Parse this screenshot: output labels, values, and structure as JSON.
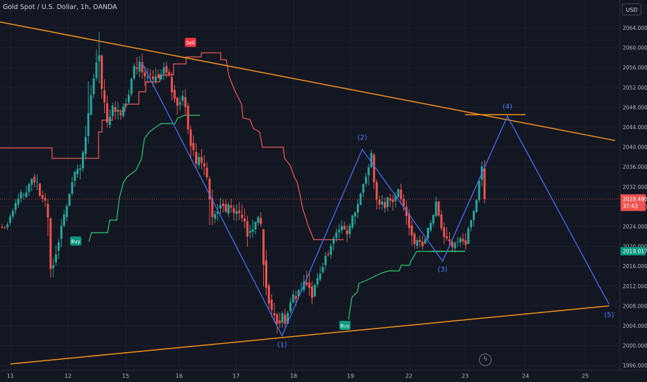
{
  "header": {
    "title": "Gold Spot / U.S. Dollar, 1h, OANDA",
    "currency_label": "USD"
  },
  "price_scale": {
    "ticks": [
      "2064.000",
      "2060.000",
      "2056.000",
      "2052.000",
      "2048.000",
      "2044.000",
      "2040.000",
      "2036.000",
      "2032.000",
      "2028.000",
      "2024.000",
      "2020.000",
      "2016.000",
      "2012.000",
      "2008.000",
      "2004.000",
      "2000.000",
      "1996.000"
    ],
    "last_price": "2029.490",
    "countdown": "37:43",
    "support_label": "2019.017"
  },
  "time_scale": {
    "labels": [
      "11",
      "12",
      "15",
      "16",
      "17",
      "18",
      "19",
      "22",
      "23",
      "24",
      "25"
    ]
  },
  "annotations": {
    "sell": "Sell",
    "buy": "Buy",
    "waves": [
      "(1)",
      "(2)",
      "(3)",
      "(4)",
      "(5)"
    ]
  },
  "colors": {
    "background": "#131722",
    "bull": "#26a69a",
    "bear": "#ef5350",
    "trendline": "#f7931a",
    "wave": "#4a6cf7",
    "wave_label": "#4a7cff",
    "stop_up": "#2ecc71",
    "stop_down": "#f05a5a"
  },
  "chart_data": {
    "type": "candlestick",
    "symbol": "Gold Spot / U.S. Dollar",
    "interval": "1h",
    "source": "OANDA",
    "y_range": [
      1996,
      2066
    ],
    "x_range": [
      "11",
      "25"
    ],
    "last_price": 2029.49,
    "trendlines": [
      {
        "name": "upper",
        "points": [
          [
            "10",
            2067.0
          ],
          [
            "25.5",
            2041.3
          ]
        ]
      },
      {
        "name": "lower",
        "points": [
          [
            "11",
            1996.3
          ],
          [
            "25.4",
            2008.0
          ]
        ]
      },
      {
        "name": "horizontal",
        "points": [
          [
            "23.0",
            2046.5
          ],
          [
            "24.0",
            2046.5
          ]
        ]
      },
      {
        "name": "support",
        "points": [
          [
            "22.4",
            2019.0
          ],
          [
            "23.0",
            2019.0
          ]
        ]
      }
    ],
    "elliott_wave": [
      {
        "label": "",
        "x": "15.3",
        "y": 2057.0
      },
      {
        "label": "(1)",
        "x": "17.8",
        "y": 2002.0
      },
      {
        "label": "(2)",
        "x": "19.6",
        "y": 2039.5
      },
      {
        "label": "(3)",
        "x": "22.6",
        "y": 2017.0
      },
      {
        "label": "(4)",
        "x": "23.7",
        "y": 2046.2
      },
      {
        "label": "(5)",
        "x": "25.4",
        "y": 2008.3
      }
    ],
    "signals": [
      {
        "type": "Sell",
        "x": "16.2",
        "y": 2061.0
      },
      {
        "type": "Buy",
        "x": "12.4",
        "y": 2021.0
      },
      {
        "type": "Buy",
        "x": "18.9",
        "y": 2004.0
      }
    ],
    "candles": [
      [
        2023.9,
        2024.6,
        2023.7,
        2023.6
      ],
      [
        2023.7,
        2024.1,
        2023.6,
        2023.6
      ],
      [
        2023.8,
        2024.9,
        2024.4,
        2023.3
      ],
      [
        2024.7,
        2026.5,
        2026.0,
        2024.1
      ],
      [
        2026.0,
        2027.6,
        2027.1,
        2025.5
      ],
      [
        2027.3,
        2029.4,
        2028.7,
        2026.5
      ],
      [
        2028.4,
        2030.6,
        2029.6,
        2027.8
      ],
      [
        2029.6,
        2031.4,
        2030.9,
        2028.8
      ],
      [
        2030.4,
        2030.8,
        2030.4,
        2029.4
      ],
      [
        2029.9,
        2032.2,
        2030.9,
        2029.8
      ],
      [
        2031.0,
        2032.8,
        2032.5,
        2030.2
      ],
      [
        2032.4,
        2033.7,
        2033.6,
        2031.1
      ],
      [
        2034.0,
        2034.6,
        2032.9,
        2031.9
      ],
      [
        2033.0,
        2034.5,
        2033.0,
        2031.3
      ],
      [
        2032.6,
        2032.8,
        2030.2,
        2029.9
      ],
      [
        2030.3,
        2031.1,
        2029.6,
        2028.8
      ],
      [
        2029.7,
        2030.7,
        2029.2,
        2028.0
      ],
      [
        2028.5,
        2029.5,
        2025.8,
        2022.1
      ],
      [
        2025.6,
        2025.9,
        2015.4,
        2013.7
      ],
      [
        2015.6,
        2017.5,
        2016.2,
        2013.8
      ],
      [
        2016.8,
        2020.2,
        2018.4,
        2016.1
      ],
      [
        2019.1,
        2021.5,
        2020.8,
        2017.5
      ],
      [
        2021.5,
        2025.5,
        2024.1,
        2019.8
      ],
      [
        2024.1,
        2027.3,
        2026.4,
        2023.8
      ],
      [
        2025.9,
        2028.4,
        2028.1,
        2025.0
      ],
      [
        2028.2,
        2030.6,
        2030.6,
        2028.0
      ],
      [
        2030.6,
        2034.0,
        2032.9,
        2030.1
      ],
      [
        2033.2,
        2035.2,
        2035.0,
        2032.0
      ],
      [
        2034.5,
        2036.4,
        2035.6,
        2033.8
      ],
      [
        2035.4,
        2036.5,
        2035.7,
        2033.5
      ],
      [
        2035.7,
        2039.3,
        2038.9,
        2035.0
      ],
      [
        2038.6,
        2044.3,
        2042.0,
        2037.5
      ],
      [
        2042.2,
        2053.2,
        2046.8,
        2040.7
      ],
      [
        2046.5,
        2052.4,
        2050.4,
        2046.3
      ],
      [
        2050.6,
        2054.7,
        2053.8,
        2049.8
      ],
      [
        2053.9,
        2059.6,
        2057.0,
        2053.3
      ],
      [
        2057.3,
        2063.2,
        2058.5,
        2052.8
      ],
      [
        2058.4,
        2058.6,
        2051.7,
        2049.8
      ],
      [
        2051.4,
        2053.6,
        2049.0,
        2046.8
      ],
      [
        2048.8,
        2050.4,
        2044.9,
        2043.9
      ],
      [
        2044.4,
        2047.6,
        2046.1,
        2043.8
      ],
      [
        2046.3,
        2048.9,
        2048.3,
        2046.0
      ],
      [
        2048.0,
        2049.2,
        2047.4,
        2045.6
      ],
      [
        2047.5,
        2049.1,
        2047.5,
        2045.5
      ],
      [
        2046.9,
        2047.6,
        2046.4,
        2045.4
      ],
      [
        2046.3,
        2048.8,
        2048.1,
        2045.9
      ],
      [
        2048.3,
        2049.8,
        2048.5,
        2047.7
      ],
      [
        2049.0,
        2051.5,
        2050.5,
        2048.5
      ],
      [
        2050.7,
        2054.0,
        2053.7,
        2050.2
      ],
      [
        2053.8,
        2056.8,
        2056.3,
        2053.4
      ],
      [
        2056.0,
        2058.1,
        2055.7,
        2054.6
      ],
      [
        2055.2,
        2058.3,
        2057.2,
        2054.0
      ],
      [
        2057.1,
        2058.8,
        2055.0,
        2053.7
      ],
      [
        2055.0,
        2056.3,
        2054.2,
        2052.3
      ],
      [
        2053.9,
        2055.9,
        2054.1,
        2052.8
      ],
      [
        2054.6,
        2055.7,
        2054.5,
        2053.2
      ],
      [
        2054.2,
        2055.5,
        2053.6,
        2052.1
      ],
      [
        2053.1,
        2055.9,
        2054.2,
        2052.7
      ],
      [
        2054.6,
        2055.6,
        2053.9,
        2053.8
      ],
      [
        2053.6,
        2055.6,
        2054.6,
        2053.4
      ],
      [
        2054.7,
        2057.1,
        2056.0,
        2053.5
      ],
      [
        2056.3,
        2057.2,
        2055.0,
        2053.9
      ],
      [
        2055.1,
        2055.7,
        2054.6,
        2054.1
      ],
      [
        2054.1,
        2055.1,
        2051.0,
        2049.3
      ],
      [
        2051.5,
        2052.5,
        2049.7,
        2048.9
      ],
      [
        2049.9,
        2050.1,
        2048.3,
        2046.5
      ],
      [
        2048.5,
        2050.1,
        2049.0,
        2047.3
      ],
      [
        2049.3,
        2051.4,
        2050.3,
        2048.3
      ],
      [
        2050.0,
        2051.6,
        2048.0,
        2046.3
      ],
      [
        2048.3,
        2048.9,
        2043.5,
        2042.6
      ],
      [
        2043.5,
        2044.3,
        2040.2,
        2037.6
      ],
      [
        2040.8,
        2042.3,
        2039.4,
        2038.1
      ],
      [
        2039.0,
        2040.8,
        2036.6,
        2035.8
      ],
      [
        2036.3,
        2038.8,
        2038.0,
        2035.6
      ],
      [
        2038.0,
        2039.6,
        2036.8,
        2035.5
      ],
      [
        2036.7,
        2038.3,
        2036.1,
        2034.3
      ],
      [
        2035.8,
        2037.0,
        2033.9,
        2033.4
      ],
      [
        2033.6,
        2034.1,
        2029.4,
        2024.3
      ],
      [
        2029.6,
        2031.4,
        2025.9,
        2024.2
      ],
      [
        2025.6,
        2027.2,
        2026.5,
        2024.7
      ],
      [
        2026.6,
        2028.5,
        2027.1,
        2025.1
      ],
      [
        2027.6,
        2029.7,
        2028.3,
        2026.5
      ],
      [
        2028.6,
        2029.4,
        2028.1,
        2026.8
      ],
      [
        2028.5,
        2029.4,
        2027.0,
        2026.6
      ],
      [
        2026.6,
        2028.9,
        2028.4,
        2025.9
      ],
      [
        2028.2,
        2029.6,
        2027.8,
        2026.8
      ],
      [
        2027.7,
        2028.4,
        2026.7,
        2025.2
      ],
      [
        2026.5,
        2028.4,
        2027.1,
        2025.1
      ],
      [
        2027.2,
        2028.9,
        2026.7,
        2025.3
      ],
      [
        2026.4,
        2028.4,
        2025.7,
        2024.9
      ],
      [
        2025.6,
        2027.6,
        2025.0,
        2023.6
      ],
      [
        2025.0,
        2026.2,
        2022.0,
        2019.9
      ],
      [
        2022.7,
        2024.3,
        2023.1,
        2021.6
      ],
      [
        2022.9,
        2025.4,
        2023.4,
        2021.8
      ],
      [
        2023.4,
        2025.0,
        2024.9,
        2022.4
      ],
      [
        2024.7,
        2026.2,
        2025.9,
        2024.2
      ],
      [
        2025.7,
        2026.9,
        2024.5,
        2023.9
      ],
      [
        2023.4,
        2023.5,
        2016.3,
        2011.9
      ],
      [
        2017.2,
        2019.2,
        2011.6,
        2010.1
      ],
      [
        2012.1,
        2012.6,
        2008.5,
        2007.4
      ],
      [
        2009.2,
        2010.3,
        2007.2,
        2005.7
      ],
      [
        2006.5,
        2008.6,
        2006.1,
        2004.6
      ],
      [
        2006.3,
        2006.6,
        2004.4,
        2002.5
      ],
      [
        2005.1,
        2006.6,
        2004.5,
        2003.6
      ],
      [
        2004.6,
        2006.9,
        2006.5,
        2003.6
      ],
      [
        2006.2,
        2007.4,
        2004.4,
        2003.8
      ],
      [
        2004.4,
        2007.0,
        2006.6,
        2004.4
      ],
      [
        2006.9,
        2009.5,
        2008.7,
        2006.5
      ],
      [
        2008.7,
        2011.1,
        2010.3,
        2008.5
      ],
      [
        2010.0,
        2011.1,
        2009.4,
        2008.1
      ],
      [
        2009.9,
        2011.4,
        2011.2,
        2009.6
      ],
      [
        2011.2,
        2012.7,
        2011.2,
        2010.7
      ],
      [
        2011.2,
        2014.2,
        2012.9,
        2010.7
      ],
      [
        2012.7,
        2015.1,
        2012.2,
        2011.9
      ],
      [
        2012.7,
        2014.7,
        2011.6,
        2010.0
      ],
      [
        2011.9,
        2013.0,
        2009.6,
        2008.3
      ],
      [
        2009.9,
        2012.5,
        2012.2,
        2009.8
      ],
      [
        2012.3,
        2014.6,
        2013.6,
        2011.7
      ],
      [
        2013.3,
        2015.9,
        2014.5,
        2012.9
      ],
      [
        2014.8,
        2016.7,
        2015.8,
        2014.4
      ],
      [
        2016.2,
        2018.8,
        2018.1,
        2015.4
      ],
      [
        2018.4,
        2019.1,
        2018.3,
        2017.9
      ],
      [
        2018.3,
        2020.6,
        2020.1,
        2017.5
      ],
      [
        2020.5,
        2022.1,
        2021.6,
        2019.2
      ],
      [
        2021.7,
        2023.6,
        2022.8,
        2020.9
      ],
      [
        2022.8,
        2024.5,
        2023.3,
        2021.5
      ],
      [
        2023.2,
        2025.3,
        2024.1,
        2022.6
      ],
      [
        2024.1,
        2025.0,
        2023.4,
        2023.3
      ],
      [
        2023.2,
        2024.3,
        2022.4,
        2020.8
      ],
      [
        2022.5,
        2024.6,
        2024.1,
        2021.6
      ],
      [
        2023.8,
        2026.3,
        2026.2,
        2023.4
      ],
      [
        2026.0,
        2027.1,
        2026.8,
        2024.4
      ],
      [
        2026.8,
        2029.5,
        2028.5,
        2025.6
      ],
      [
        2028.3,
        2030.9,
        2030.6,
        2028.3
      ],
      [
        2030.8,
        2032.7,
        2032.5,
        2029.8
      ],
      [
        2032.6,
        2034.8,
        2034.0,
        2032.0
      ],
      [
        2034.3,
        2036.6,
        2035.9,
        2032.3
      ],
      [
        2036.0,
        2039.5,
        2038.8,
        2035.7
      ],
      [
        2038.4,
        2038.8,
        2032.9,
        2031.5
      ],
      [
        2032.9,
        2033.4,
        2029.4,
        2027.4
      ],
      [
        2029.4,
        2030.2,
        2028.4,
        2027.4
      ],
      [
        2028.4,
        2030.3,
        2029.0,
        2027.3
      ],
      [
        2028.9,
        2029.8,
        2027.7,
        2026.8
      ],
      [
        2027.9,
        2030.0,
        2029.8,
        2027.0
      ],
      [
        2029.7,
        2030.6,
        2029.2,
        2027.9
      ],
      [
        2029.4,
        2030.4,
        2028.9,
        2027.2
      ],
      [
        2029.1,
        2030.9,
        2030.2,
        2027.8
      ],
      [
        2029.9,
        2031.6,
        2031.5,
        2029.8
      ],
      [
        2031.4,
        2032.6,
        2029.5,
        2028.4
      ],
      [
        2029.5,
        2030.5,
        2028.1,
        2027.1
      ],
      [
        2028.0,
        2029.2,
        2026.1,
        2024.3
      ],
      [
        2026.6,
        2027.5,
        2023.7,
        2022.2
      ],
      [
        2024.2,
        2025.2,
        2022.2,
        2020.1
      ],
      [
        2022.5,
        2022.9,
        2020.5,
        2019.5
      ],
      [
        2020.1,
        2021.8,
        2021.2,
        2019.5
      ],
      [
        2021.3,
        2022.2,
        2020.9,
        2019.8
      ],
      [
        2020.9,
        2022.1,
        2020.0,
        2019.3
      ],
      [
        2020.5,
        2021.9,
        2021.4,
        2020.5
      ],
      [
        2021.6,
        2023.8,
        2023.7,
        2021.2
      ],
      [
        2023.2,
        2025.2,
        2024.7,
        2022.8
      ],
      [
        2024.6,
        2026.4,
        2026.3,
        2023.9
      ],
      [
        2026.1,
        2030.0,
        2029.0,
        2025.8
      ],
      [
        2029.0,
        2029.1,
        2026.2,
        2025.9
      ],
      [
        2026.4,
        2027.3,
        2023.6,
        2023.1
      ],
      [
        2023.8,
        2024.8,
        2021.9,
        2020.4
      ],
      [
        2022.0,
        2023.9,
        2021.6,
        2021.1
      ],
      [
        2021.4,
        2022.8,
        2021.0,
        2019.8
      ],
      [
        2020.9,
        2021.5,
        2019.9,
        2018.8
      ],
      [
        2019.6,
        2021.0,
        2020.7,
        2018.7
      ],
      [
        2020.8,
        2021.9,
        2020.9,
        2019.9
      ],
      [
        2020.8,
        2022.0,
        2021.6,
        2019.9
      ],
      [
        2021.5,
        2022.6,
        2021.0,
        2020.3
      ],
      [
        2021.2,
        2022.6,
        2020.3,
        2019.3
      ],
      [
        2020.5,
        2024.0,
        2023.6,
        2020.4
      ],
      [
        2023.8,
        2025.4,
        2025.2,
        2023.0
      ],
      [
        2025.3,
        2027.4,
        2027.1,
        2024.0
      ],
      [
        2026.9,
        2029.5,
        2029.3,
        2026.7
      ],
      [
        2029.3,
        2033.5,
        2033.2,
        2028.8
      ],
      [
        2033.4,
        2037.1,
        2036.1,
        2032.1
      ],
      [
        2035.7,
        2037.3,
        2029.5,
        2028.6
      ]
    ]
  }
}
